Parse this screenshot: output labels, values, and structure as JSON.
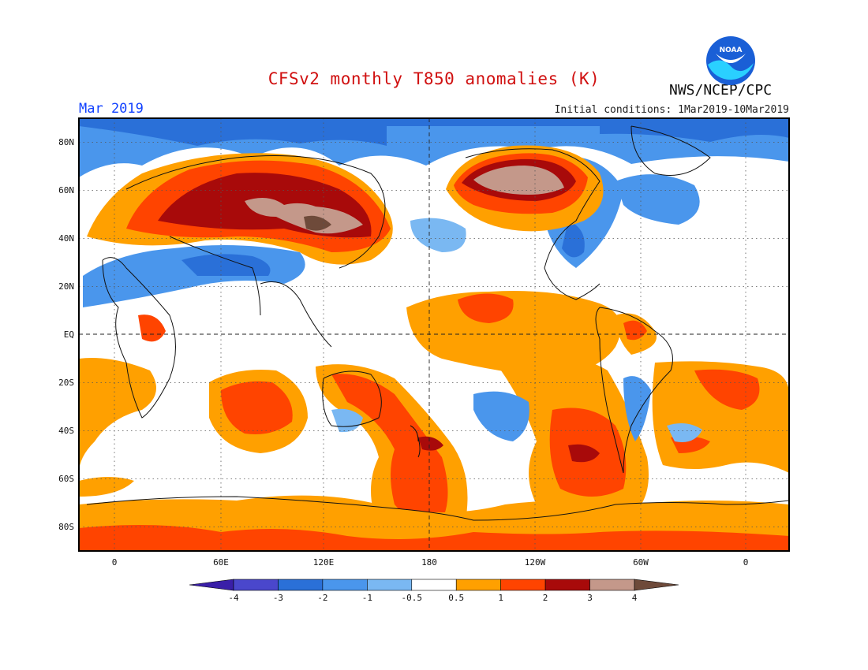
{
  "header": {
    "title": "CFSv2 monthly T850 anomalies (K)",
    "month": "Mar 2019",
    "initial_conditions": "Initial conditions: 1Mar2019-10Mar2019",
    "org": "NWS/NCEP/CPC",
    "logo_text": "NOAA"
  },
  "axes": {
    "lat_labels": [
      "80N",
      "60N",
      "40N",
      "20N",
      "EQ",
      "20S",
      "40S",
      "60S",
      "80S"
    ],
    "lat_values": [
      80,
      60,
      40,
      20,
      0,
      -20,
      -40,
      -60,
      -80
    ],
    "lon_labels": [
      "0",
      "60E",
      "120E",
      "180",
      "120W",
      "60W",
      "0"
    ],
    "lon_values": [
      0,
      60,
      120,
      180,
      240,
      300,
      360
    ],
    "lon_range": [
      -20,
      380
    ],
    "lat_range": [
      -90,
      90
    ]
  },
  "colorbar": {
    "labels": [
      "-4",
      "-3",
      "-2",
      "-1",
      "-0.5",
      "0.5",
      "1",
      "2",
      "3",
      "4"
    ],
    "colors": [
      "#3a1fa8",
      "#4a47cc",
      "#2a70d8",
      "#4a96ec",
      "#7ab8f2",
      "#ffffff",
      "#ffa000",
      "#ff4400",
      "#a80a0a",
      "#c4988a",
      "#6e4a3a"
    ]
  },
  "chart_data": {
    "type": "heatmap",
    "variable": "T850 anomalies",
    "units": "K",
    "levels": [
      -4,
      -3,
      -2,
      -1,
      -0.5,
      0.5,
      1,
      2,
      3,
      4
    ],
    "features": [
      {
        "region": "northern Asia",
        "anomaly_max": 4
      },
      {
        "region": "Alaska / Bering Sea",
        "anomaly_max": 4
      },
      {
        "region": "southern Pacific south of Tahiti",
        "anomaly_max": 3
      },
      {
        "region": "southern Pacific east of New Zealand",
        "anomaly_max": 3
      },
      {
        "region": "central Arctic / northern Canada",
        "anomaly_min": -2
      },
      {
        "region": "central North America",
        "anomaly_min": -3
      },
      {
        "region": "south Asia / India",
        "anomaly_min": -2
      }
    ]
  }
}
